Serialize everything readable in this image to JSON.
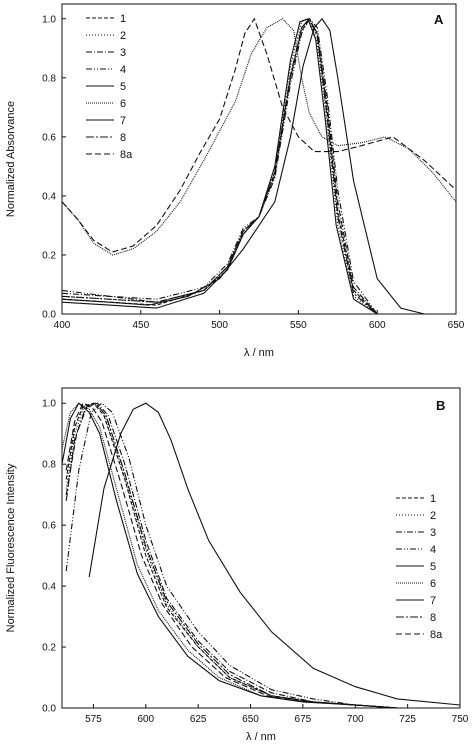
{
  "chart_data": [
    {
      "type": "line",
      "panel_label": "A",
      "xlabel": "λ / nm",
      "ylabel": "Normalized Absorvance",
      "xlim": [
        400,
        650
      ],
      "ylim": [
        0,
        1.05
      ],
      "xticks": [
        400,
        450,
        500,
        550,
        600,
        650
      ],
      "yticks": [
        0.0,
        0.2,
        0.4,
        0.6,
        0.8,
        1.0
      ],
      "legend_position": "top-left",
      "grid": false,
      "series": [
        {
          "name": "1",
          "dash": "4,2",
          "x": [
            400,
            430,
            460,
            490,
            505,
            515,
            525,
            535,
            545,
            552,
            557,
            562,
            568,
            575,
            585,
            600
          ],
          "y": [
            0.05,
            0.04,
            0.03,
            0.08,
            0.15,
            0.27,
            0.33,
            0.48,
            0.8,
            0.97,
            1.0,
            0.95,
            0.7,
            0.35,
            0.08,
            0.0
          ]
        },
        {
          "name": "2",
          "dash": "1,2",
          "x": [
            400,
            430,
            460,
            490,
            505,
            515,
            525,
            535,
            545,
            552,
            557,
            562,
            568,
            575,
            585,
            600
          ],
          "y": [
            0.06,
            0.05,
            0.04,
            0.08,
            0.16,
            0.28,
            0.33,
            0.5,
            0.84,
            0.99,
            1.0,
            0.92,
            0.65,
            0.3,
            0.06,
            0.0
          ]
        },
        {
          "name": "3",
          "dash": "6,2,1,2",
          "x": [
            400,
            430,
            460,
            490,
            505,
            515,
            525,
            535,
            545,
            552,
            557,
            562,
            568,
            575,
            585,
            600
          ],
          "y": [
            0.07,
            0.06,
            0.04,
            0.08,
            0.16,
            0.28,
            0.33,
            0.47,
            0.8,
            0.96,
            1.0,
            0.95,
            0.72,
            0.38,
            0.09,
            0.0
          ]
        },
        {
          "name": "4",
          "dash": "6,2,1,2,1,2",
          "x": [
            400,
            430,
            460,
            490,
            505,
            515,
            525,
            535,
            545,
            552,
            557,
            562,
            568,
            575,
            585,
            600
          ],
          "y": [
            0.08,
            0.06,
            0.05,
            0.09,
            0.17,
            0.29,
            0.33,
            0.46,
            0.78,
            0.95,
            1.0,
            0.97,
            0.75,
            0.42,
            0.11,
            0.0
          ]
        },
        {
          "name": "5",
          "dash": "",
          "x": [
            400,
            430,
            455,
            480,
            500,
            515,
            525,
            535,
            545,
            553,
            560,
            565,
            570,
            575,
            585,
            600,
            615,
            630
          ],
          "y": [
            0.05,
            0.04,
            0.03,
            0.06,
            0.12,
            0.22,
            0.3,
            0.38,
            0.6,
            0.84,
            0.97,
            1.0,
            0.96,
            0.8,
            0.45,
            0.12,
            0.02,
            0.0
          ]
        },
        {
          "name": "6",
          "dash": "1,1",
          "x": [
            400,
            410,
            420,
            432,
            445,
            460,
            475,
            490,
            500,
            510,
            520,
            530,
            540,
            547,
            552,
            557,
            565,
            575,
            590,
            605,
            620,
            635,
            650
          ],
          "y": [
            0.38,
            0.32,
            0.24,
            0.2,
            0.22,
            0.28,
            0.38,
            0.52,
            0.62,
            0.72,
            0.88,
            0.97,
            1.0,
            0.96,
            0.8,
            0.68,
            0.6,
            0.57,
            0.58,
            0.6,
            0.56,
            0.48,
            0.38
          ]
        },
        {
          "name": "7",
          "dash": "",
          "x": [
            400,
            430,
            460,
            490,
            505,
            515,
            525,
            535,
            545,
            551,
            556,
            561,
            567,
            574,
            585,
            600
          ],
          "y": [
            0.04,
            0.03,
            0.02,
            0.07,
            0.15,
            0.27,
            0.33,
            0.5,
            0.86,
            0.99,
            1.0,
            0.93,
            0.66,
            0.3,
            0.05,
            0.0
          ]
        },
        {
          "name": "8",
          "dash": "8,2,2,2",
          "x": [
            400,
            430,
            460,
            490,
            505,
            515,
            525,
            535,
            545,
            552,
            557,
            562,
            568,
            575,
            585,
            600
          ],
          "y": [
            0.06,
            0.05,
            0.04,
            0.08,
            0.16,
            0.28,
            0.33,
            0.48,
            0.81,
            0.97,
            1.0,
            0.94,
            0.68,
            0.33,
            0.07,
            0.0
          ]
        },
        {
          "name": "8a",
          "dash": "6,3",
          "x": [
            400,
            410,
            420,
            432,
            445,
            460,
            475,
            488,
            500,
            510,
            516,
            522,
            530,
            540,
            550,
            560,
            575,
            590,
            610,
            630,
            650
          ],
          "y": [
            0.38,
            0.32,
            0.25,
            0.21,
            0.23,
            0.3,
            0.42,
            0.55,
            0.66,
            0.83,
            0.95,
            1.0,
            0.88,
            0.7,
            0.6,
            0.55,
            0.55,
            0.57,
            0.6,
            0.52,
            0.42
          ]
        }
      ]
    },
    {
      "type": "line",
      "panel_label": "B",
      "xlabel": "λ / nm",
      "ylabel": "Normalized Fluorescence Intensity",
      "xlim": [
        560,
        750
      ],
      "ylim": [
        0,
        1.05
      ],
      "xticks": [
        575,
        600,
        625,
        650,
        675,
        700,
        725,
        750
      ],
      "yticks": [
        0.0,
        0.2,
        0.4,
        0.6,
        0.8,
        1.0
      ],
      "legend_position": "right",
      "grid": false,
      "series": [
        {
          "name": "1",
          "dash": "4,2",
          "x": [
            562,
            566,
            570,
            575,
            580,
            590,
            600,
            610,
            625,
            640,
            660,
            680,
            700,
            720,
            750
          ],
          "y": [
            0.75,
            0.92,
            0.99,
            1.0,
            0.96,
            0.75,
            0.5,
            0.33,
            0.2,
            0.1,
            0.04,
            0.02,
            0.01,
            0.0,
            0.0
          ]
        },
        {
          "name": "2",
          "dash": "1,2",
          "x": [
            562,
            566,
            570,
            575,
            580,
            590,
            600,
            610,
            625,
            640,
            660,
            680,
            700,
            720,
            750
          ],
          "y": [
            0.72,
            0.9,
            0.98,
            1.0,
            0.97,
            0.76,
            0.52,
            0.34,
            0.2,
            0.1,
            0.04,
            0.02,
            0.01,
            0.0,
            0.0
          ]
        },
        {
          "name": "3",
          "dash": "6,2,1,2",
          "x": [
            562,
            567,
            572,
            577,
            582,
            590,
            600,
            610,
            625,
            640,
            660,
            680,
            700,
            720,
            750
          ],
          "y": [
            0.7,
            0.9,
            0.99,
            1.0,
            0.96,
            0.8,
            0.55,
            0.36,
            0.22,
            0.12,
            0.05,
            0.02,
            0.01,
            0.0,
            0.0
          ]
        },
        {
          "name": "4",
          "dash": "6,2,1,2,1,2",
          "x": [
            562,
            568,
            574,
            579,
            584,
            592,
            600,
            610,
            625,
            640,
            660,
            680,
            700,
            720,
            750
          ],
          "y": [
            0.45,
            0.78,
            0.97,
            1.0,
            0.97,
            0.82,
            0.6,
            0.4,
            0.25,
            0.14,
            0.06,
            0.03,
            0.01,
            0.0,
            0.0
          ]
        },
        {
          "name": "5",
          "dash": "",
          "x": [
            573,
            580,
            588,
            594,
            600,
            606,
            612,
            620,
            630,
            645,
            660,
            680,
            700,
            720,
            750
          ],
          "y": [
            0.43,
            0.72,
            0.9,
            0.98,
            1.0,
            0.97,
            0.88,
            0.72,
            0.55,
            0.38,
            0.25,
            0.13,
            0.07,
            0.03,
            0.01
          ]
        },
        {
          "name": "6",
          "dash": "1,1",
          "x": [
            560,
            564,
            568,
            573,
            578,
            586,
            596,
            606,
            620,
            635,
            655,
            675,
            700,
            720,
            750
          ],
          "y": [
            0.85,
            0.97,
            1.0,
            0.98,
            0.92,
            0.72,
            0.47,
            0.32,
            0.19,
            0.1,
            0.04,
            0.02,
            0.01,
            0.0,
            0.0
          ]
        },
        {
          "name": "7",
          "dash": "",
          "x": [
            560,
            564,
            568,
            573,
            578,
            586,
            596,
            606,
            620,
            635,
            655,
            675,
            700,
            720,
            750
          ],
          "y": [
            0.8,
            0.95,
            1.0,
            0.97,
            0.9,
            0.68,
            0.44,
            0.3,
            0.17,
            0.09,
            0.04,
            0.02,
            0.01,
            0.0,
            0.0
          ]
        },
        {
          "name": "8",
          "dash": "8,2,2,2",
          "x": [
            562,
            566,
            571,
            576,
            581,
            590,
            600,
            610,
            625,
            640,
            660,
            680,
            700,
            720,
            750
          ],
          "y": [
            0.68,
            0.88,
            0.98,
            1.0,
            0.96,
            0.77,
            0.53,
            0.35,
            0.21,
            0.11,
            0.04,
            0.02,
            0.01,
            0.0,
            0.0
          ]
        },
        {
          "name": "8a",
          "dash": "6,3",
          "x": [
            562,
            566,
            570,
            574,
            579,
            588,
            598,
            608,
            622,
            638,
            658,
            678,
            700,
            720,
            750
          ],
          "y": [
            0.78,
            0.94,
            1.0,
            0.99,
            0.94,
            0.74,
            0.5,
            0.34,
            0.2,
            0.1,
            0.04,
            0.02,
            0.01,
            0.0,
            0.0
          ]
        }
      ]
    }
  ]
}
